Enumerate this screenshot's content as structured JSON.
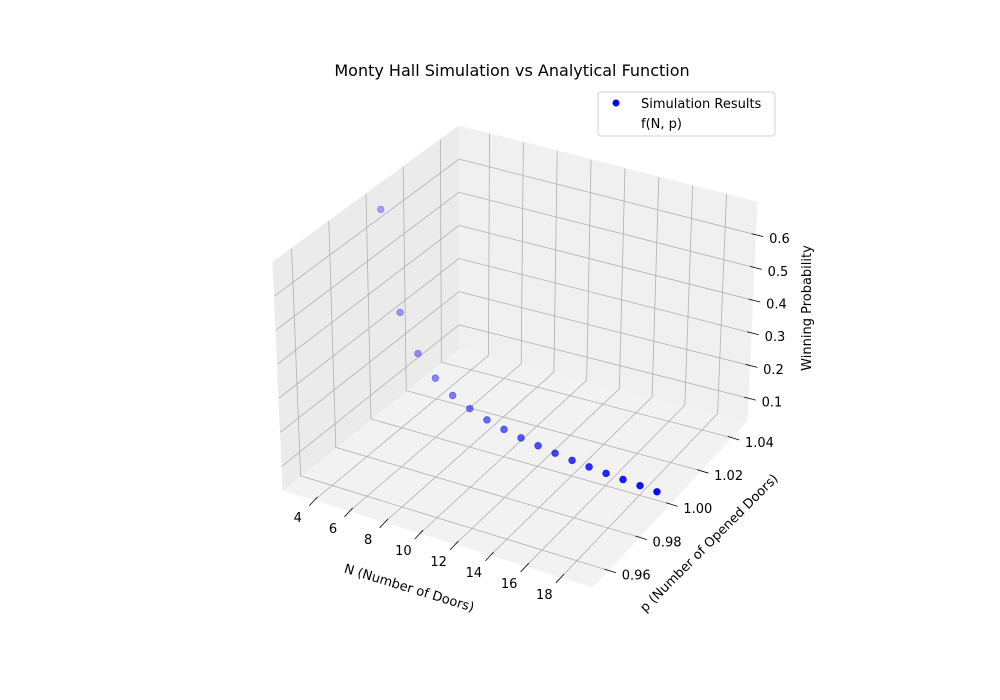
{
  "chart_data": {
    "type": "scatter",
    "title": "Monty Hall Simulation vs Analytical Function",
    "xlabel": "N (Number of Doors)",
    "ylabel": "p (Number of Opened Doors)",
    "zlabel": "Winning Probability",
    "xlim": [
      2.2,
      19.8
    ],
    "ylim": [
      0.95,
      1.05
    ],
    "zlim": [
      0.03,
      0.7
    ],
    "x_ticks": [
      "4",
      "6",
      "8",
      "10",
      "12",
      "14",
      "16",
      "18"
    ],
    "y_ticks": [
      "0.96",
      "0.98",
      "1.00",
      "1.02",
      "1.04"
    ],
    "z_ticks": [
      "0.1",
      "0.2",
      "0.3",
      "0.4",
      "0.5",
      "0.6"
    ],
    "legend": {
      "position": "top-right",
      "entries": [
        "Simulation Results",
        "f(N, p)"
      ]
    },
    "series": [
      {
        "name": "Simulation Results",
        "color": "#0000ff",
        "points": [
          {
            "x": 3,
            "y": 1,
            "z": 0.667
          },
          {
            "x": 4,
            "y": 1,
            "z": 0.375
          },
          {
            "x": 5,
            "y": 1,
            "z": 0.267
          },
          {
            "x": 6,
            "y": 1,
            "z": 0.208
          },
          {
            "x": 7,
            "y": 1,
            "z": 0.171
          },
          {
            "x": 8,
            "y": 1,
            "z": 0.146
          },
          {
            "x": 9,
            "y": 1,
            "z": 0.127
          },
          {
            "x": 10,
            "y": 1,
            "z": 0.113
          },
          {
            "x": 11,
            "y": 1,
            "z": 0.102
          },
          {
            "x": 12,
            "y": 1,
            "z": 0.093
          },
          {
            "x": 13,
            "y": 1,
            "z": 0.085
          },
          {
            "x": 14,
            "y": 1,
            "z": 0.078
          },
          {
            "x": 15,
            "y": 1,
            "z": 0.073
          },
          {
            "x": 16,
            "y": 1,
            "z": 0.068
          },
          {
            "x": 17,
            "y": 1,
            "z": 0.064
          },
          {
            "x": 18,
            "y": 1,
            "z": 0.06
          },
          {
            "x": 19,
            "y": 1,
            "z": 0.056
          }
        ]
      },
      {
        "name": "f(N, p)",
        "color": "#ff0000",
        "type": "surface",
        "points": []
      }
    ]
  }
}
